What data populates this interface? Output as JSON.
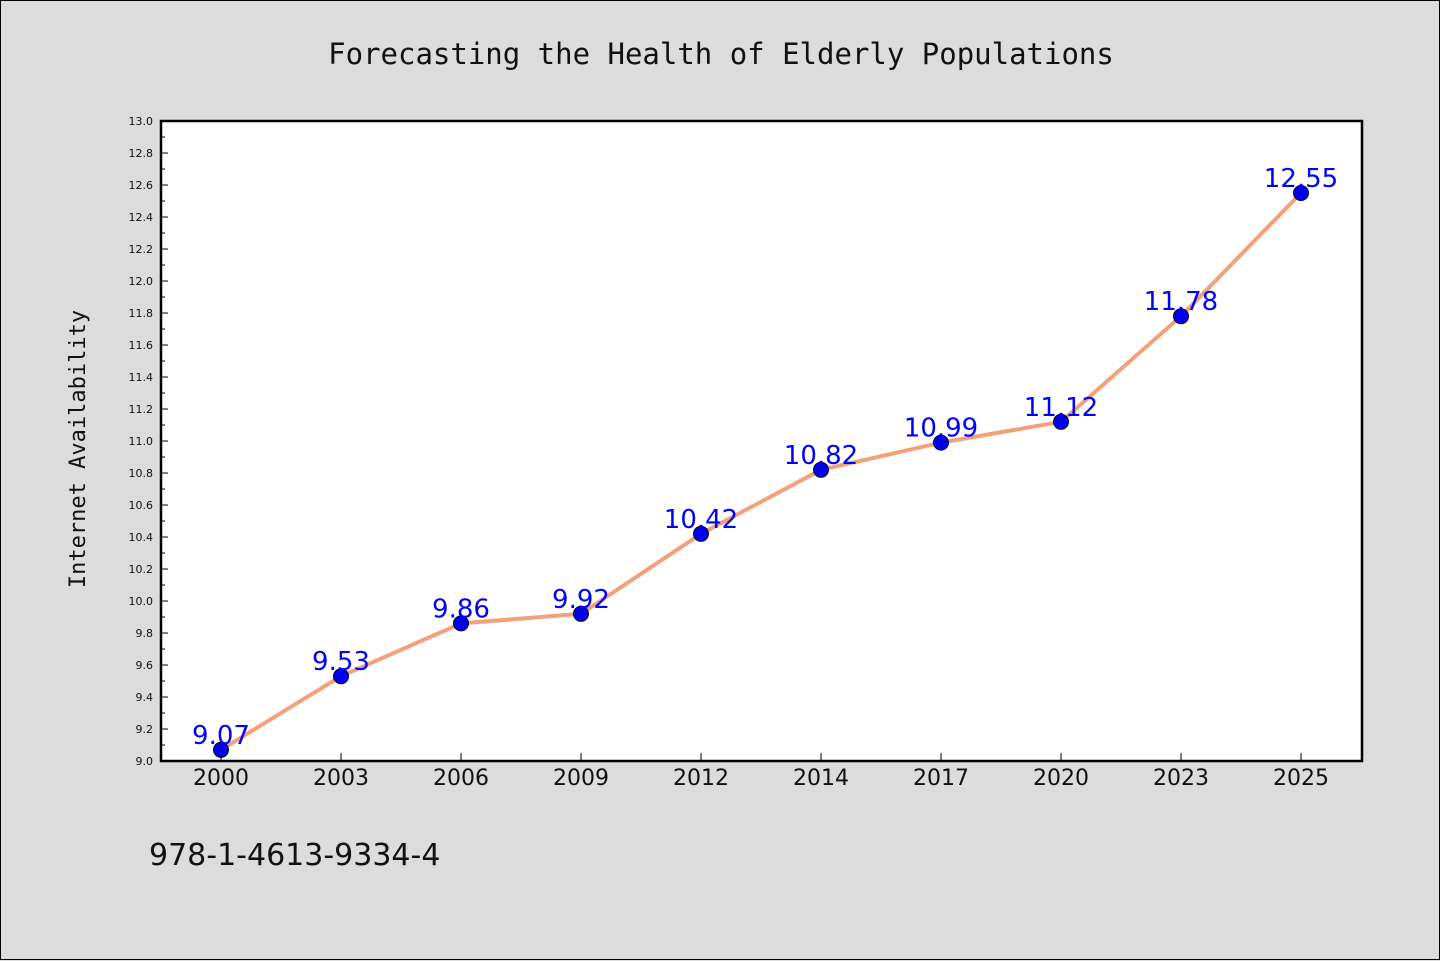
{
  "chart_data": {
    "type": "line",
    "title": "Forecasting the Health of Elderly Populations",
    "xlabel": "",
    "ylabel": "Internet Availability",
    "categories": [
      "2000",
      "2003",
      "2006",
      "2009",
      "2012",
      "2014",
      "2017",
      "2020",
      "2023",
      "2025"
    ],
    "series": [
      {
        "values": [
          9.07,
          9.53,
          9.86,
          9.92,
          10.42,
          10.82,
          10.99,
          11.12,
          11.78,
          12.55
        ]
      }
    ],
    "data_labels": [
      "9.07",
      "9.53",
      "9.86",
      "9.92",
      "10.42",
      "10.82",
      "10.99",
      "11.12",
      "11.78",
      "12.55"
    ],
    "ylim": [
      9.0,
      13.0
    ],
    "yticks": [
      "9.0",
      "9.2",
      "9.4",
      "9.6",
      "9.8",
      "10.0",
      "10.2",
      "10.4",
      "10.6",
      "10.8",
      "11.0",
      "11.2",
      "11.4",
      "11.6",
      "11.8",
      "12.0",
      "12.2",
      "12.4",
      "12.6",
      "12.8",
      "13.0"
    ],
    "grid": false,
    "colors": {
      "line": "#f4a07a",
      "marker": "#0000ee",
      "label": "#0000ff",
      "plot_bg": "#ffffff",
      "figure_bg": "#dcdcdc"
    }
  },
  "annotation": {
    "text": "978-1-4613-9334-4"
  }
}
